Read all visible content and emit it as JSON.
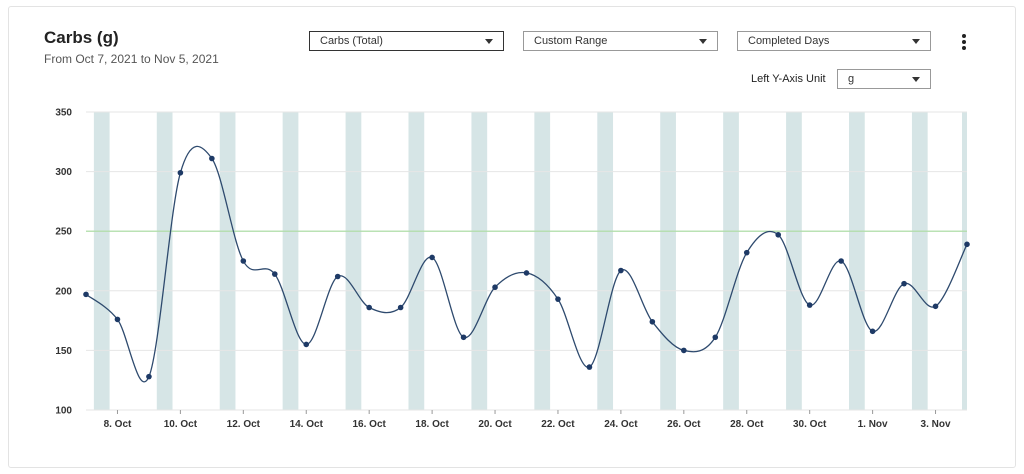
{
  "header": {
    "title": "Carbs (g)",
    "subtitle": "From Oct 7, 2021 to Nov 5, 2021"
  },
  "controls": {
    "metric_select": "Carbs (Total)",
    "range_select": "Custom Range",
    "days_select": "Completed Days",
    "y_unit_label": "Left Y-Axis Unit",
    "y_unit_select": "g",
    "menu_icon": "kebab-menu-icon"
  },
  "colors": {
    "line": "#2e4a6e",
    "point": "#1e3a66",
    "stripe": "#d6e5e6",
    "target_line": "#a8dca0",
    "grid": "#e6e6e6"
  },
  "chart_data": {
    "type": "line",
    "title": "Carbs (g)",
    "subtitle": "From Oct 7, 2021 to Nov 5, 2021",
    "xlabel": "",
    "ylabel": "",
    "ylim": [
      100,
      350
    ],
    "yticks": [
      100,
      150,
      200,
      250,
      300,
      350
    ],
    "target_value": 250,
    "grid": true,
    "x": [
      "Oct 7",
      "Oct 8",
      "Oct 9",
      "Oct 10",
      "Oct 11",
      "Oct 12",
      "Oct 13",
      "Oct 14",
      "Oct 15",
      "Oct 16",
      "Oct 17",
      "Oct 18",
      "Oct 19",
      "Oct 20",
      "Oct 21",
      "Oct 22",
      "Oct 23",
      "Oct 24",
      "Oct 25",
      "Oct 26",
      "Oct 27",
      "Oct 28",
      "Oct 29",
      "Oct 30",
      "Oct 31",
      "Nov 1",
      "Nov 2",
      "Nov 3",
      "Nov 4"
    ],
    "xtick_labels": [
      "8. Oct",
      "10. Oct",
      "12. Oct",
      "14. Oct",
      "16. Oct",
      "18. Oct",
      "20. Oct",
      "22. Oct",
      "24. Oct",
      "26. Oct",
      "28. Oct",
      "30. Oct",
      "1. Nov",
      "3. Nov"
    ],
    "series": [
      {
        "values": [
          197,
          176,
          128,
          299,
          311,
          225,
          214,
          155,
          212,
          186,
          186,
          228,
          161,
          203,
          215,
          193,
          136,
          217,
          174,
          150,
          161,
          232,
          247,
          188,
          225,
          166,
          206,
          187,
          239
        ]
      }
    ]
  }
}
